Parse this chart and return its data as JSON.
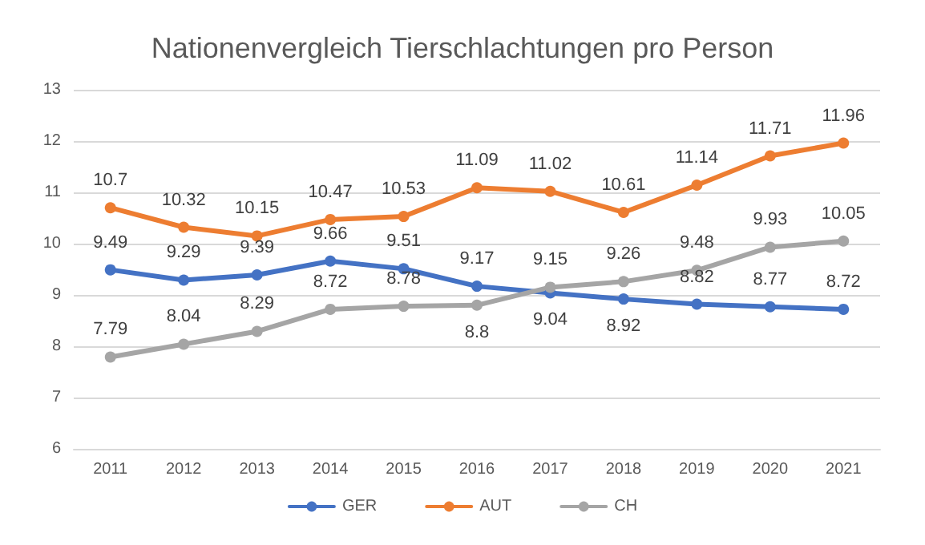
{
  "chart_data": {
    "type": "line",
    "title": "Nationenvergleich Tierschlachtungen pro Person",
    "categories": [
      "2011",
      "2012",
      "2013",
      "2014",
      "2015",
      "2016",
      "2017",
      "2018",
      "2019",
      "2020",
      "2021"
    ],
    "series": [
      {
        "name": "GER",
        "color": "#4472c4",
        "values": [
          9.49,
          9.29,
          9.39,
          9.66,
          9.51,
          9.17,
          9.04,
          8.92,
          8.82,
          8.77,
          8.72
        ]
      },
      {
        "name": "AUT",
        "color": "#ed7d31",
        "values": [
          10.7,
          10.32,
          10.15,
          10.47,
          10.53,
          11.09,
          11.02,
          10.61,
          11.14,
          11.71,
          11.96
        ]
      },
      {
        "name": "CH",
        "color": "#a5a5a5",
        "values": [
          7.79,
          8.04,
          8.29,
          8.72,
          8.78,
          8.8,
          9.15,
          9.26,
          9.48,
          9.93,
          10.05
        ]
      }
    ],
    "ylim": [
      6,
      13
    ],
    "yticks": [
      6,
      7,
      8,
      9,
      10,
      11,
      12,
      13
    ],
    "grid": "y",
    "legend": "bottom",
    "marker": "circle",
    "line_style": "solid",
    "data_labels": true
  }
}
